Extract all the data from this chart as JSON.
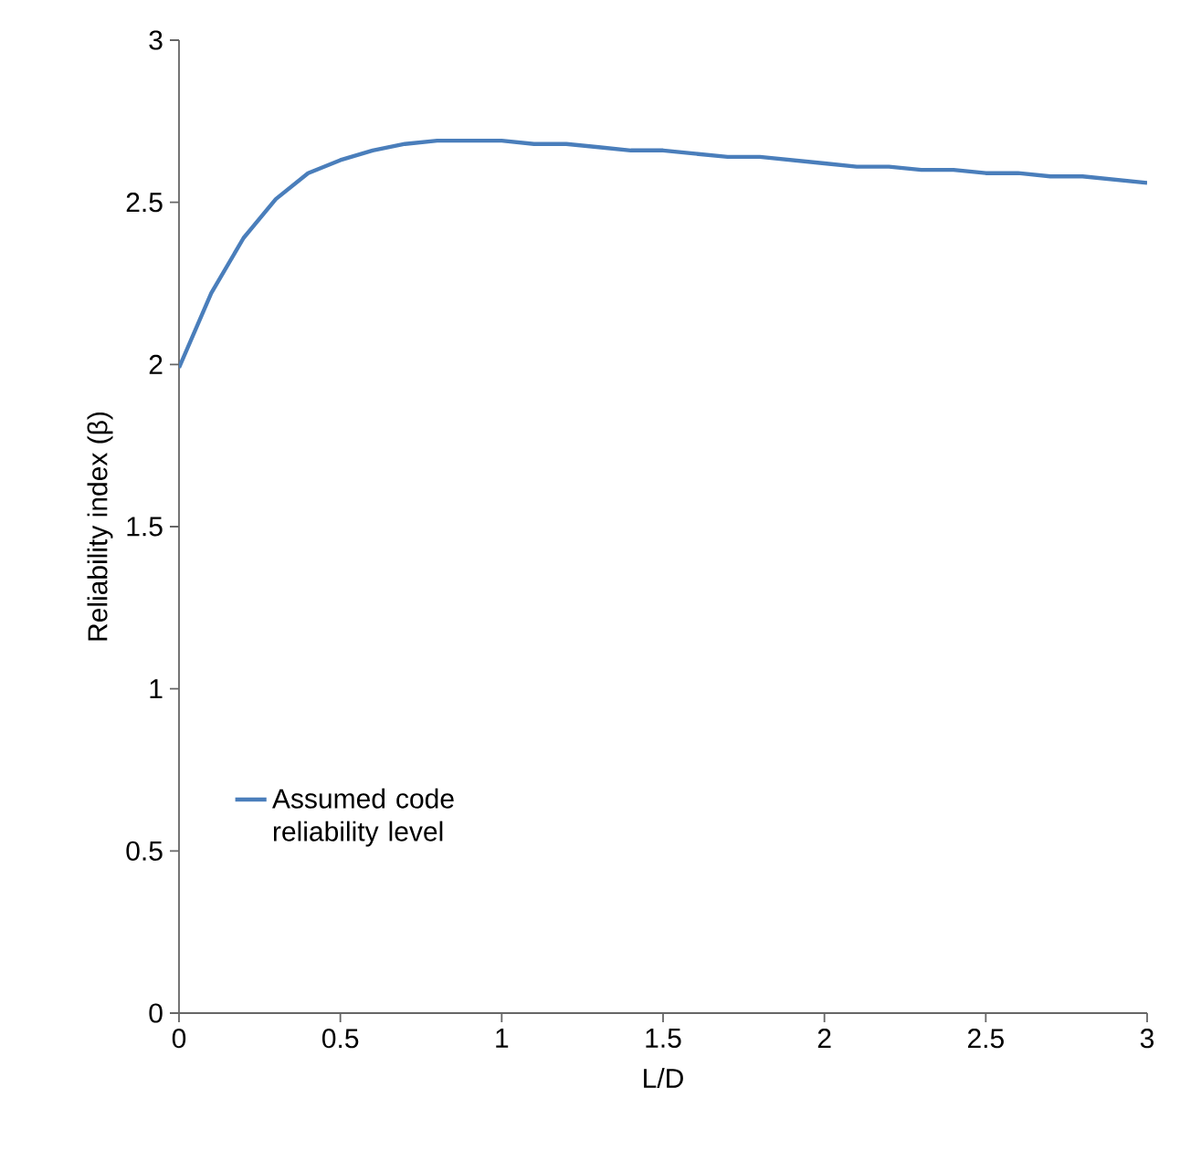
{
  "chart_data": {
    "type": "line",
    "xlabel": "L/D",
    "ylabel": "Reliability index (β)",
    "xlim": [
      0,
      3
    ],
    "ylim": [
      0,
      3
    ],
    "xticks": [
      0,
      0.5,
      1,
      1.5,
      2,
      2.5,
      3
    ],
    "yticks": [
      0,
      0.5,
      1,
      1.5,
      2,
      2.5,
      3
    ],
    "grid": false,
    "legend": "bottom left",
    "marker": "none",
    "line_style": "solid",
    "x": [
      0,
      0.1,
      0.2,
      0.3,
      0.4,
      0.5,
      0.6,
      0.7,
      0.8,
      0.9,
      1.0,
      1.1,
      1.2,
      1.3,
      1.4,
      1.5,
      1.6,
      1.7,
      1.8,
      1.9,
      2.0,
      2.1,
      2.2,
      2.3,
      2.4,
      2.5,
      2.6,
      2.7,
      2.8,
      2.9,
      3.0
    ],
    "series": [
      {
        "name": "Assumed code reliability level",
        "color": "#4a7ebb",
        "values": [
          1.99,
          2.22,
          2.39,
          2.51,
          2.59,
          2.63,
          2.66,
          2.68,
          2.69,
          2.69,
          2.69,
          2.68,
          2.68,
          2.67,
          2.66,
          2.66,
          2.65,
          2.64,
          2.64,
          2.63,
          2.62,
          2.61,
          2.61,
          2.6,
          2.6,
          2.59,
          2.59,
          2.58,
          2.58,
          2.57,
          2.56
        ]
      }
    ]
  }
}
